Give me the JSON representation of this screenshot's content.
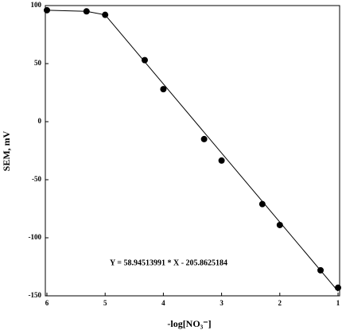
{
  "chart_data": {
    "type": "scatter",
    "x_label": "-log[NO₃⁻]",
    "y_label": "SEM, mV",
    "annotation": "Y = 58.94513991 * X - 205.8625184",
    "xlim": [
      6,
      1
    ],
    "xticks": [
      6,
      5,
      4,
      3,
      2,
      1
    ],
    "ylim": [
      -150,
      100
    ],
    "yticks": [
      100,
      50,
      0,
      -50,
      -100,
      -150
    ],
    "series": [
      {
        "color": "#000000",
        "marker": "circle",
        "x": [
          6,
          5.32,
          5,
          4.32,
          4,
          3.3,
          3,
          2.3,
          2,
          1.3,
          1
        ],
        "values": [
          96,
          95,
          92,
          53,
          28,
          -15,
          -33.5,
          -71,
          -89,
          -128,
          -143
        ]
      },
      {
        "color": "#000000",
        "marker": "line",
        "x": [
          6,
          5.32,
          5,
          1
        ],
        "values": [
          96,
          95,
          92,
          -146
        ]
      }
    ]
  }
}
